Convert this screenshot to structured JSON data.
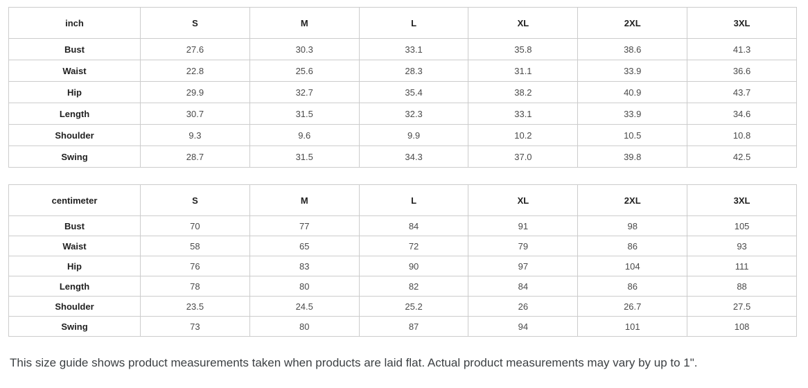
{
  "page": {
    "note": "This size guide shows product measurements taken when products are laid flat. Actual product measurements may vary by up to 1\"."
  },
  "tables": [
    {
      "unit_label": "inch",
      "columns": [
        "S",
        "M",
        "L",
        "XL",
        "2XL",
        "3XL"
      ],
      "rows": [
        {
          "label": "Bust",
          "values": [
            "27.6",
            "30.3",
            "33.1",
            "35.8",
            "38.6",
            "41.3"
          ]
        },
        {
          "label": "Waist",
          "values": [
            "22.8",
            "25.6",
            "28.3",
            "31.1",
            "33.9",
            "36.6"
          ]
        },
        {
          "label": "Hip",
          "values": [
            "29.9",
            "32.7",
            "35.4",
            "38.2",
            "40.9",
            "43.7"
          ]
        },
        {
          "label": "Length",
          "values": [
            "30.7",
            "31.5",
            "32.3",
            "33.1",
            "33.9",
            "34.6"
          ]
        },
        {
          "label": "Shoulder",
          "values": [
            "9.3",
            "9.6",
            "9.9",
            "10.2",
            "10.5",
            "10.8"
          ]
        },
        {
          "label": "Swing",
          "values": [
            "28.7",
            "31.5",
            "34.3",
            "37.0",
            "39.8",
            "42.5"
          ]
        }
      ]
    },
    {
      "unit_label": "centimeter",
      "columns": [
        "S",
        "M",
        "L",
        "XL",
        "2XL",
        "3XL"
      ],
      "rows": [
        {
          "label": "Bust",
          "values": [
            "70",
            "77",
            "84",
            "91",
            "98",
            "105"
          ]
        },
        {
          "label": "Waist",
          "values": [
            "58",
            "65",
            "72",
            "79",
            "86",
            "93"
          ]
        },
        {
          "label": "Hip",
          "values": [
            "76",
            "83",
            "90",
            "97",
            "104",
            "111"
          ]
        },
        {
          "label": "Length",
          "values": [
            "78",
            "80",
            "82",
            "84",
            "86",
            "88"
          ]
        },
        {
          "label": "Shoulder",
          "values": [
            "23.5",
            "24.5",
            "25.2",
            "26",
            "26.7",
            "27.5"
          ]
        },
        {
          "label": "Swing",
          "values": [
            "73",
            "80",
            "87",
            "94",
            "101",
            "108"
          ]
        }
      ]
    }
  ],
  "colors": {
    "border": "#cccccc",
    "label_text": "#1f1f1f",
    "value_text": "#4a4a4a",
    "note_text": "#3c4043"
  }
}
